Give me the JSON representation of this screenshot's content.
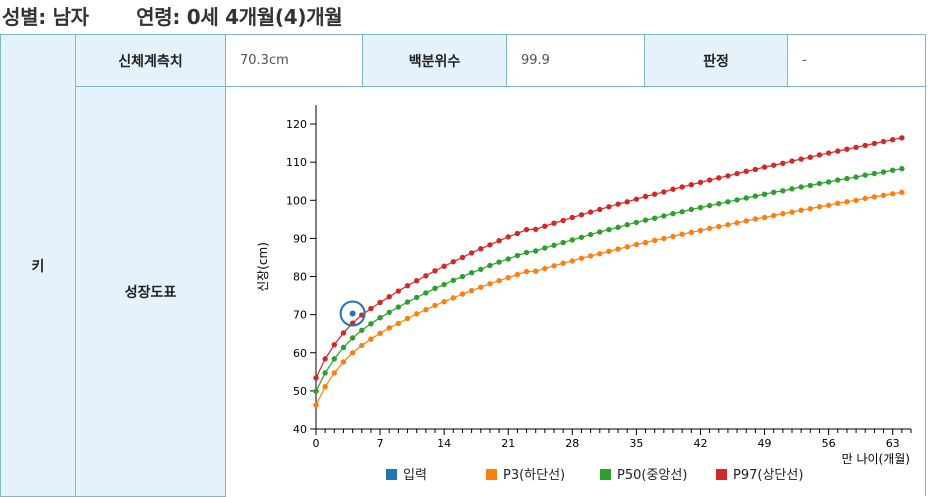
{
  "header": {
    "gender_label": "성별:",
    "gender_value": "남자",
    "age_label": "연령:",
    "age_value": "0세 4개월(4)개월"
  },
  "table": {
    "row_label": "키",
    "measure_label": "신체계측치",
    "measure_value": "70.3cm",
    "percentile_label": "백분위수",
    "percentile_value": "99.9",
    "judgement_label": "판정",
    "judgement_value": "-",
    "chart_label": "성장도표"
  },
  "colors": {
    "input": "#1f77b4",
    "p3": "#ff7f0e",
    "p50": "#2ca02c",
    "p97": "#d62728"
  },
  "chart_data": {
    "type": "line",
    "title": "",
    "xlabel": "만 나이(개월)",
    "ylabel": "신장(cm)",
    "xlim": [
      0,
      65
    ],
    "ylim": [
      40,
      125
    ],
    "xticks": [
      0,
      7,
      14,
      21,
      28,
      35,
      42,
      49,
      56,
      63
    ],
    "yticks": [
      40,
      50,
      60,
      70,
      80,
      90,
      100,
      110,
      120
    ],
    "legend": [
      "입력",
      "P3(하단선)",
      "P50(중앙선)",
      "P97(상단선)"
    ],
    "input_point": {
      "x": 4,
      "y": 70.3
    },
    "series": [
      {
        "name": "P3(하단선)",
        "x": [
          0,
          1,
          2,
          3,
          4,
          5,
          6,
          7,
          8,
          9,
          10,
          11,
          12,
          13,
          14,
          15,
          16,
          17,
          18,
          19,
          20,
          21,
          22,
          23,
          24,
          25,
          26,
          27,
          28,
          29,
          30,
          31,
          32,
          33,
          34,
          35,
          36,
          37,
          38,
          39,
          40,
          41,
          42,
          43,
          44,
          45,
          46,
          47,
          48,
          49,
          50,
          51,
          52,
          53,
          54,
          55,
          56,
          57,
          58,
          59,
          60,
          61,
          62,
          63,
          64
        ],
        "values": [
          46.3,
          51.1,
          54.7,
          57.6,
          60.0,
          61.9,
          63.6,
          65.1,
          66.5,
          67.7,
          69.0,
          70.2,
          71.3,
          72.4,
          73.4,
          74.4,
          75.4,
          76.3,
          77.2,
          78.1,
          78.9,
          79.7,
          80.5,
          81.3,
          81.4,
          82.1,
          82.8,
          83.5,
          84.1,
          84.8,
          85.4,
          86.0,
          86.6,
          87.2,
          87.8,
          88.4,
          88.9,
          89.5,
          90.0,
          90.5,
          91.1,
          91.6,
          92.1,
          92.6,
          93.1,
          93.6,
          94.1,
          94.6,
          95.1,
          95.5,
          96.0,
          96.5,
          96.9,
          97.4,
          97.8,
          98.3,
          98.7,
          99.2,
          99.6,
          100.0,
          100.5,
          100.9,
          101.3,
          101.7,
          102.1
        ]
      },
      {
        "name": "P50(중앙선)",
        "x": [
          0,
          1,
          2,
          3,
          4,
          5,
          6,
          7,
          8,
          9,
          10,
          11,
          12,
          13,
          14,
          15,
          16,
          17,
          18,
          19,
          20,
          21,
          22,
          23,
          24,
          25,
          26,
          27,
          28,
          29,
          30,
          31,
          32,
          33,
          34,
          35,
          36,
          37,
          38,
          39,
          40,
          41,
          42,
          43,
          44,
          45,
          46,
          47,
          48,
          49,
          50,
          51,
          52,
          53,
          54,
          55,
          56,
          57,
          58,
          59,
          60,
          61,
          62,
          63,
          64
        ],
        "values": [
          49.9,
          54.7,
          58.4,
          61.4,
          63.9,
          65.9,
          67.6,
          69.2,
          70.6,
          72.0,
          73.3,
          74.5,
          75.7,
          76.9,
          77.9,
          79.0,
          80.0,
          81.0,
          81.9,
          82.9,
          83.8,
          84.6,
          85.5,
          86.3,
          86.7,
          87.5,
          88.2,
          88.9,
          89.6,
          90.3,
          91.0,
          91.7,
          92.3,
          92.9,
          93.6,
          94.2,
          94.8,
          95.3,
          95.9,
          96.5,
          97.0,
          97.6,
          98.1,
          98.6,
          99.1,
          99.6,
          100.1,
          100.6,
          101.1,
          101.6,
          102.1,
          102.5,
          103.0,
          103.5,
          103.9,
          104.4,
          104.8,
          105.3,
          105.7,
          106.1,
          106.6,
          107.0,
          107.4,
          107.9,
          108.3
        ]
      },
      {
        "name": "P97(상단선)",
        "x": [
          0,
          1,
          2,
          3,
          4,
          5,
          6,
          7,
          8,
          9,
          10,
          11,
          12,
          13,
          14,
          15,
          16,
          17,
          18,
          19,
          20,
          21,
          22,
          23,
          24,
          25,
          26,
          27,
          28,
          29,
          30,
          31,
          32,
          33,
          34,
          35,
          36,
          37,
          38,
          39,
          40,
          41,
          42,
          43,
          44,
          45,
          46,
          47,
          48,
          49,
          50,
          51,
          52,
          53,
          54,
          55,
          56,
          57,
          58,
          59,
          60,
          61,
          62,
          63,
          64
        ],
        "values": [
          53.4,
          58.4,
          62.1,
          65.2,
          67.8,
          69.9,
          71.6,
          73.2,
          74.7,
          76.2,
          77.6,
          78.9,
          80.2,
          81.5,
          82.7,
          83.9,
          85.0,
          86.2,
          87.3,
          88.3,
          89.4,
          90.4,
          91.3,
          92.3,
          92.4,
          93.2,
          94.0,
          94.7,
          95.5,
          96.2,
          96.9,
          97.6,
          98.3,
          99.0,
          99.6,
          100.3,
          101.0,
          101.6,
          102.2,
          102.9,
          103.5,
          104.1,
          104.7,
          105.3,
          105.9,
          106.4,
          107.0,
          107.6,
          108.1,
          108.7,
          109.2,
          109.7,
          110.3,
          110.8,
          111.3,
          111.9,
          112.4,
          112.9,
          113.4,
          113.9,
          114.4,
          114.9,
          115.4,
          115.9,
          116.4
        ]
      }
    ]
  }
}
